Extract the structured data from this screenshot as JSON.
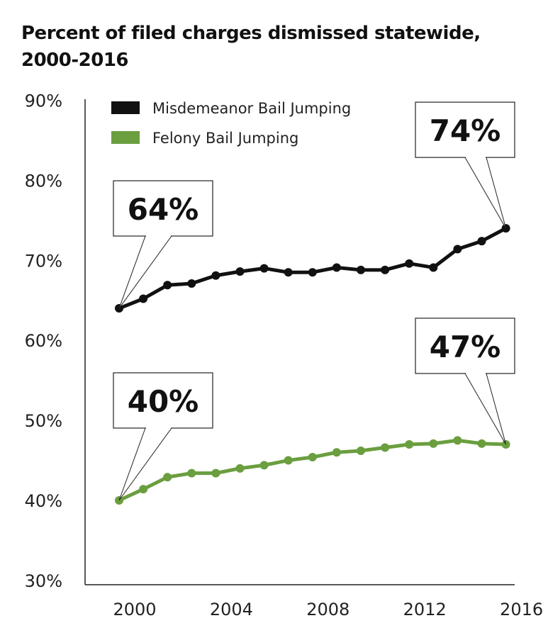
{
  "chart_data": {
    "type": "line",
    "title": "Percent of filed charges dismissed statewide, 2000-2016",
    "xlabel": "",
    "ylabel": "",
    "x": [
      2000,
      2001,
      2002,
      2003,
      2004,
      2005,
      2006,
      2007,
      2008,
      2009,
      2010,
      2011,
      2012,
      2013,
      2014,
      2015,
      2016
    ],
    "x_tick_labels": [
      "2000",
      "2004",
      "2008",
      "2012",
      "2016"
    ],
    "x_ticks": [
      2000,
      2004,
      2008,
      2012,
      2016
    ],
    "y_tick_labels": [
      "90%",
      "80%",
      "70%",
      "60%",
      "50%",
      "40%",
      "30%"
    ],
    "y_ticks": [
      90,
      80,
      70,
      60,
      50,
      40,
      30
    ],
    "ylim": [
      30,
      90
    ],
    "grid": false,
    "legend_position": "top-left",
    "series": [
      {
        "name": "Misdemeanor Bail Jumping",
        "color": "#111111",
        "values": [
          64,
          65.2,
          66.9,
          67.1,
          68.1,
          68.6,
          69.0,
          68.5,
          68.5,
          69.1,
          68.8,
          68.8,
          69.6,
          69.1,
          71.4,
          72.4,
          74
        ]
      },
      {
        "name": "Felony Bail Jumping",
        "color": "#6a9e3f",
        "values": [
          40,
          41.4,
          42.9,
          43.4,
          43.4,
          44.0,
          44.4,
          45.0,
          45.4,
          46.0,
          46.2,
          46.6,
          47.0,
          47.1,
          47.5,
          47.1,
          47.0
        ]
      }
    ],
    "annotations": [
      {
        "text": "64%",
        "series": 0,
        "x": 2000
      },
      {
        "text": "74%",
        "series": 0,
        "x": 2016
      },
      {
        "text": "40%",
        "series": 1,
        "x": 2000
      },
      {
        "text": "47%",
        "series": 1,
        "x": 2016
      }
    ]
  }
}
